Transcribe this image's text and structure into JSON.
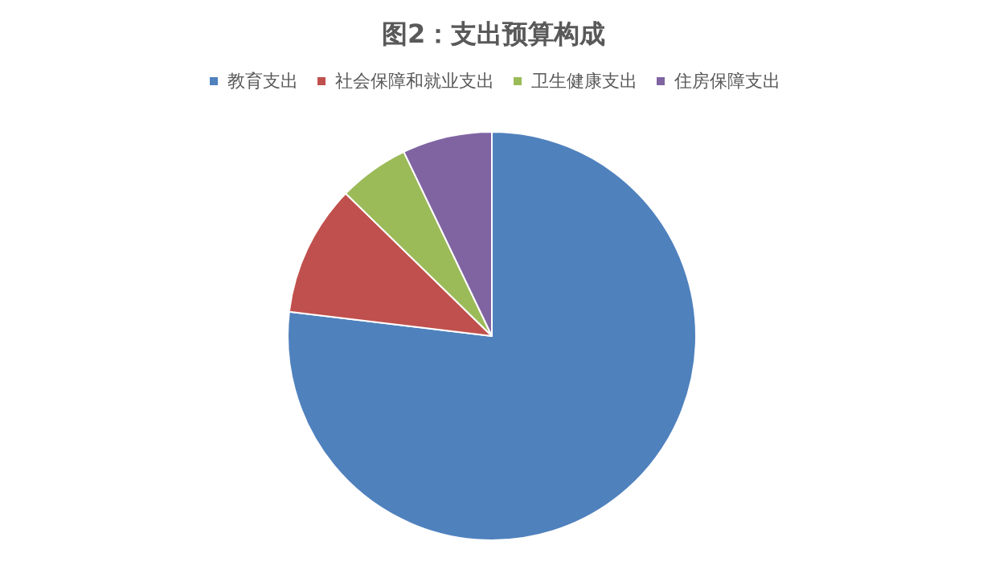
{
  "chart_data": {
    "type": "pie",
    "title": "图2：支出预算构成",
    "categories": [
      "教育支出",
      "社会保障和就业支出",
      "卫生健康支出",
      "住房保障支出"
    ],
    "values": [
      76.9,
      10.4,
      5.6,
      7.1
    ],
    "colors": [
      "#4f81bd",
      "#c0504d",
      "#9bbb59",
      "#8064a2"
    ],
    "legend": "top"
  }
}
